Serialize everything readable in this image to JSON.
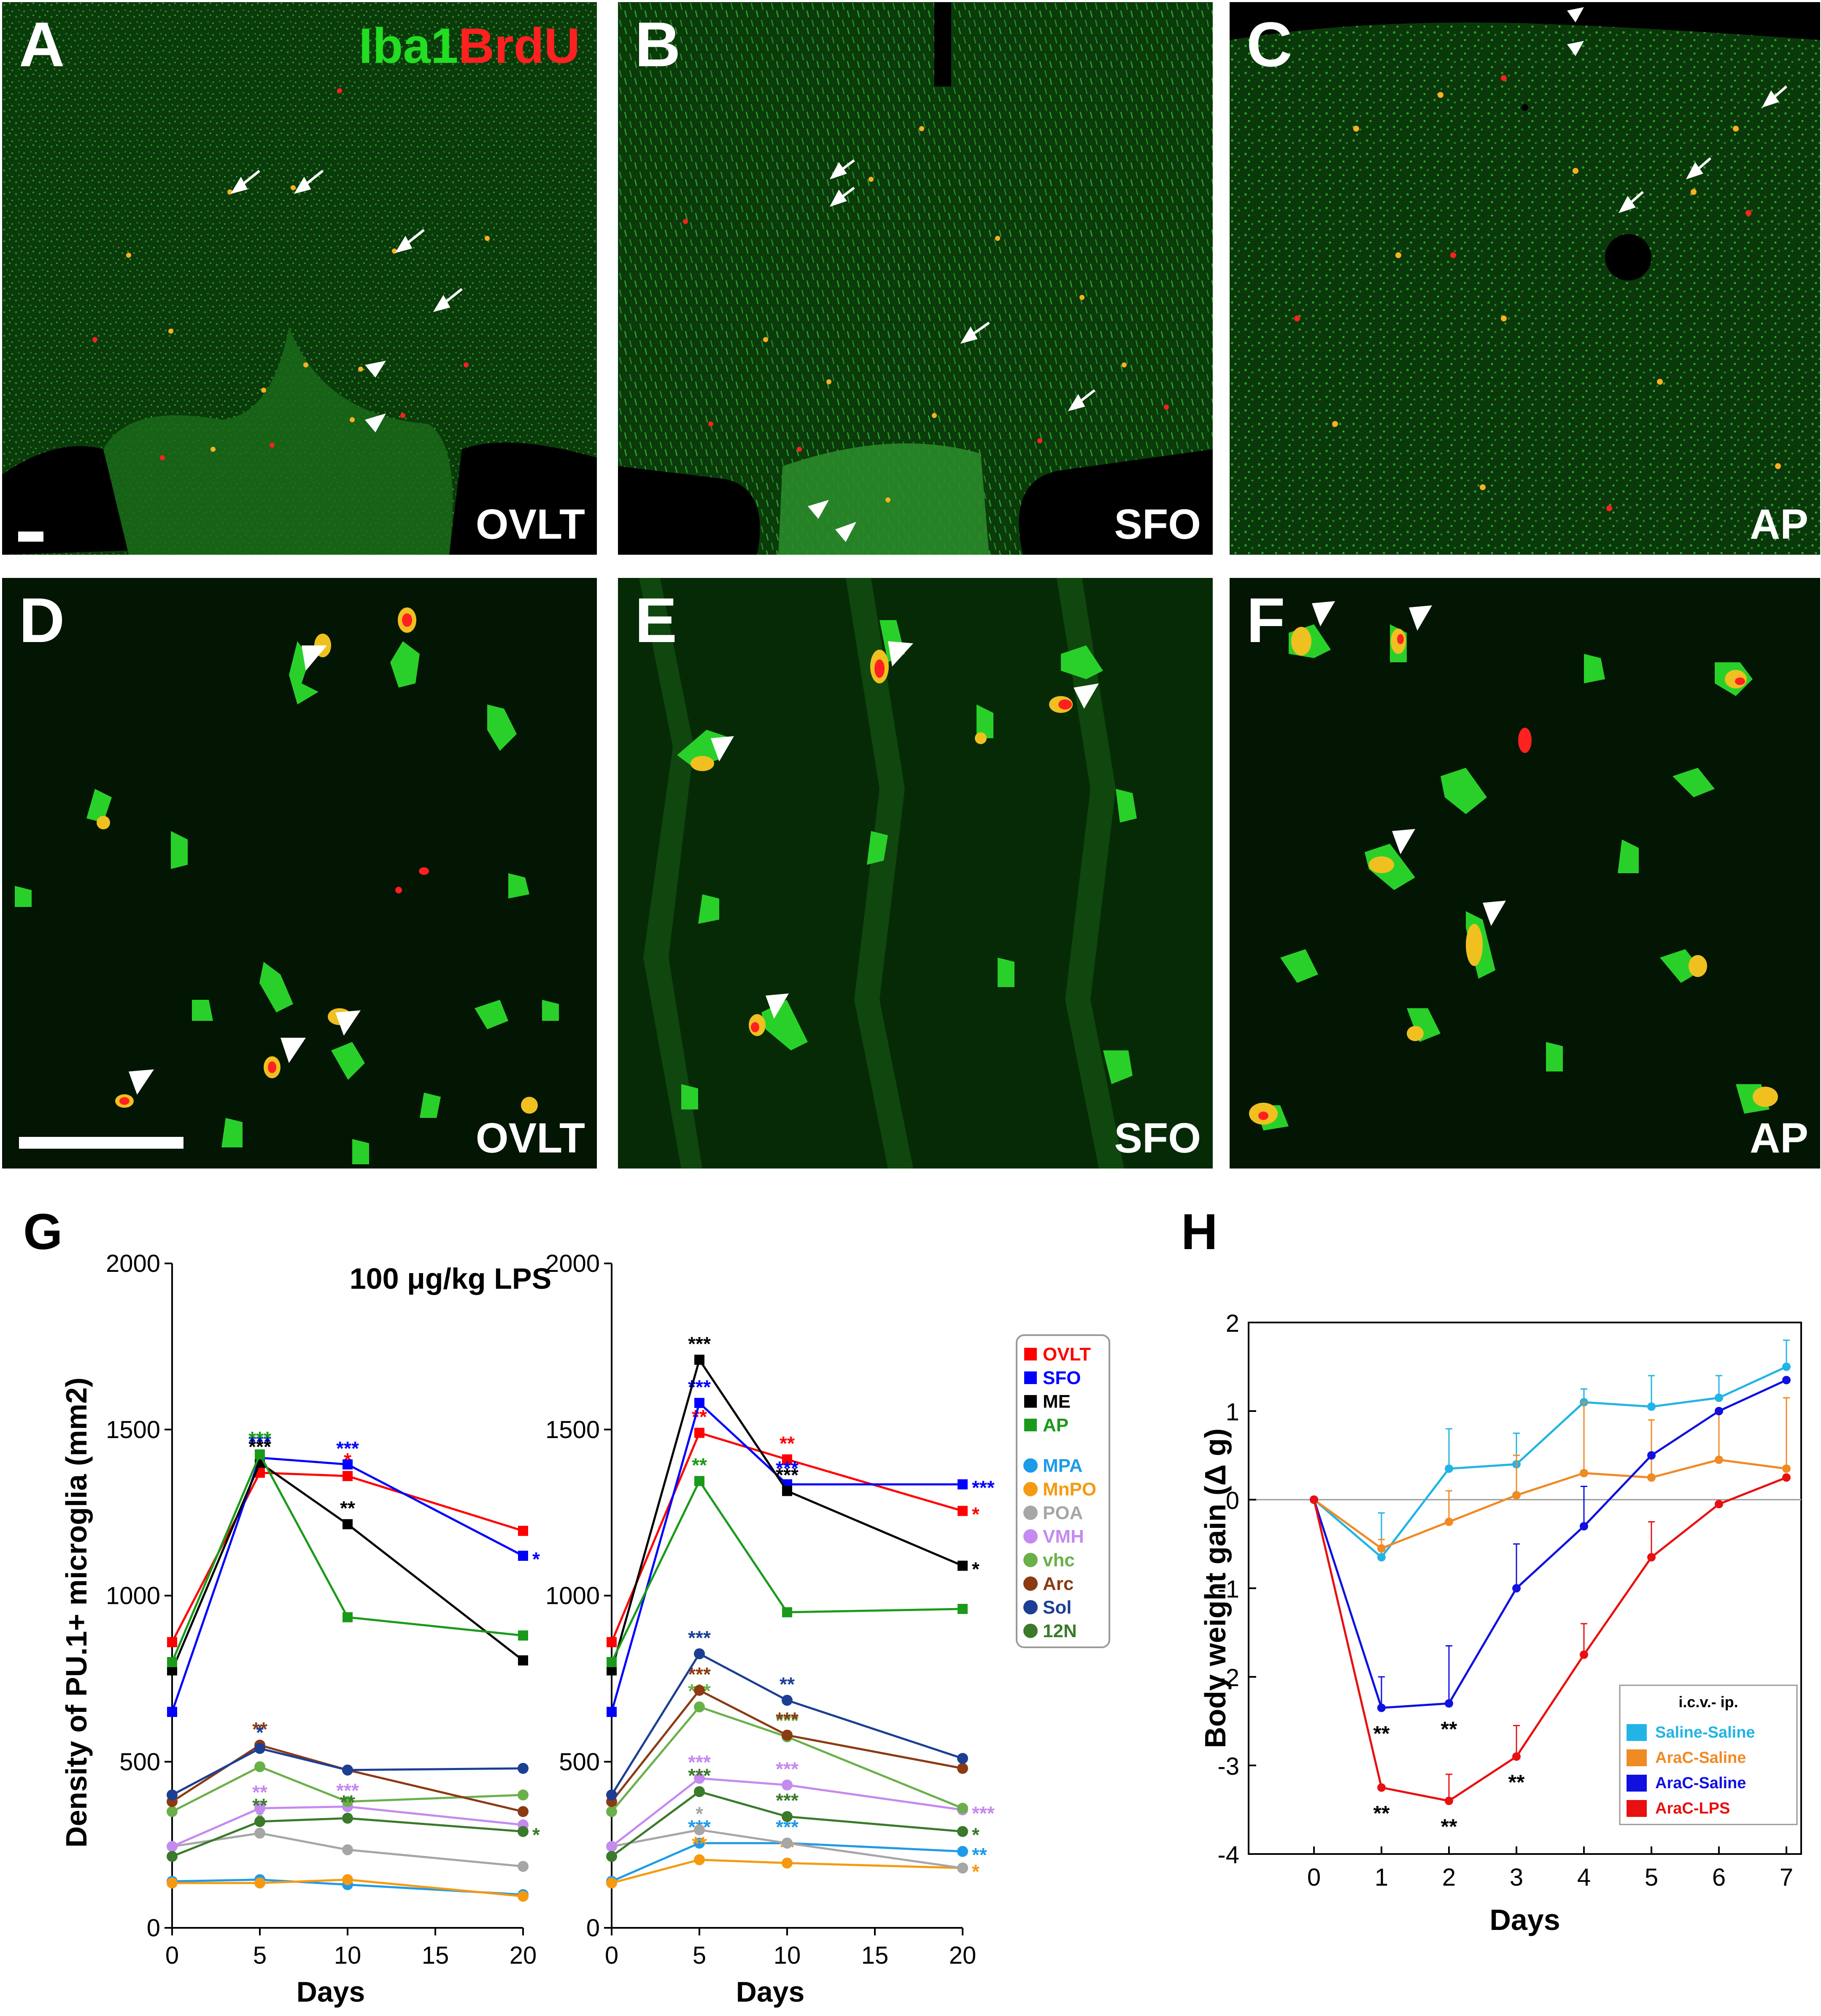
{
  "panels": {
    "A": {
      "label": "A",
      "region": "OVLT",
      "stain_green": "Iba1",
      "stain_red": "BrdU"
    },
    "B": {
      "label": "B",
      "region": "SFO"
    },
    "C": {
      "label": "C",
      "region": "AP"
    },
    "D": {
      "label": "D",
      "region": "OVLT"
    },
    "E": {
      "label": "E",
      "region": "SFO"
    },
    "F": {
      "label": "F",
      "region": "AP"
    },
    "G": {
      "label": "G"
    },
    "H": {
      "label": "H"
    }
  },
  "colors": {
    "microscopy_background": "#062006",
    "green_stain": "#22dd22",
    "red_stain": "#ff2020",
    "double_labelled": "#f0c020"
  },
  "chart_data": [
    {
      "id": "G-left",
      "type": "line",
      "title": "100 μg/kg LPS",
      "xlabel": "Days",
      "ylabel": "Density of PU.1+ microglia (mm2)",
      "x": [
        0,
        5,
        10,
        20
      ],
      "xlim": [
        0,
        20
      ],
      "ylim": [
        0,
        2000
      ],
      "xticks": [
        "0",
        "5",
        "10",
        "15",
        "20"
      ],
      "yticks": [
        "0",
        "500",
        "1000",
        "1500",
        "2000"
      ],
      "series": [
        {
          "name": "OVLT",
          "color": "#ff0000",
          "marker": "square",
          "values": [
            860,
            1370,
            1360,
            1195
          ],
          "stars": [
            "",
            "*",
            "*",
            ""
          ]
        },
        {
          "name": "SFO",
          "color": "#0000ff",
          "marker": "square",
          "values": [
            650,
            1415,
            1395,
            1120
          ],
          "stars": [
            "",
            "***",
            "***",
            "*"
          ]
        },
        {
          "name": "ME",
          "color": "#000000",
          "marker": "square",
          "values": [
            775,
            1400,
            1215,
            805
          ],
          "stars": [
            "",
            "***",
            "**",
            ""
          ]
        },
        {
          "name": "AP",
          "color": "#1a9a1a",
          "marker": "square",
          "values": [
            800,
            1425,
            935,
            880
          ],
          "stars": [
            "",
            "***",
            "",
            ""
          ]
        },
        {
          "name": "MPA",
          "color": "#1e9be8",
          "marker": "circle",
          "values": [
            140,
            145,
            130,
            100
          ],
          "stars": [
            "",
            "",
            "",
            ""
          ]
        },
        {
          "name": "MnPO",
          "color": "#f59a10",
          "marker": "circle",
          "values": [
            135,
            135,
            145,
            95
          ],
          "stars": [
            "",
            "",
            "",
            ""
          ]
        },
        {
          "name": "POA",
          "color": "#a6a6a6",
          "marker": "circle",
          "values": [
            245,
            285,
            235,
            185
          ],
          "stars": [
            "",
            "*",
            "",
            ""
          ]
        },
        {
          "name": "VMH",
          "color": "#c58af0",
          "marker": "circle",
          "values": [
            245,
            360,
            365,
            310
          ],
          "stars": [
            "",
            "**",
            "***",
            ""
          ]
        },
        {
          "name": "vhc",
          "color": "#6ab04a",
          "marker": "circle",
          "values": [
            350,
            485,
            380,
            400
          ],
          "stars": [
            "",
            "*",
            "",
            ""
          ]
        },
        {
          "name": "Arc",
          "color": "#8b3a12",
          "marker": "circle",
          "values": [
            380,
            550,
            475,
            350
          ],
          "stars": [
            "",
            "**",
            "",
            ""
          ]
        },
        {
          "name": "Sol",
          "color": "#1c3f94",
          "marker": "circle",
          "values": [
            400,
            540,
            475,
            480
          ],
          "stars": [
            "",
            "*",
            "",
            ""
          ]
        },
        {
          "name": "12N",
          "color": "#3a7a2a",
          "marker": "circle",
          "values": [
            215,
            320,
            330,
            290
          ],
          "stars": [
            "",
            "**",
            "**",
            "*"
          ]
        }
      ]
    },
    {
      "id": "G-right",
      "type": "line",
      "title": "",
      "xlabel": "Days",
      "ylabel": "",
      "x": [
        0,
        5,
        10,
        20
      ],
      "xlim": [
        0,
        20
      ],
      "ylim": [
        0,
        2000
      ],
      "xticks": [
        "0",
        "5",
        "10",
        "15",
        "20"
      ],
      "yticks": [
        "0",
        "500",
        "1000",
        "1500",
        "2000"
      ],
      "legend": "right",
      "series": [
        {
          "name": "OVLT",
          "color": "#ff0000",
          "marker": "square",
          "values": [
            860,
            1490,
            1410,
            1255
          ],
          "stars": [
            "",
            "**",
            "**",
            "*"
          ]
        },
        {
          "name": "SFO",
          "color": "#0000ff",
          "marker": "square",
          "values": [
            650,
            1580,
            1335,
            1335
          ],
          "stars": [
            "",
            "***",
            "***",
            "***"
          ]
        },
        {
          "name": "ME",
          "color": "#000000",
          "marker": "square",
          "values": [
            775,
            1710,
            1315,
            1090
          ],
          "stars": [
            "",
            "***",
            "***",
            "*"
          ]
        },
        {
          "name": "AP",
          "color": "#1a9a1a",
          "marker": "square",
          "values": [
            800,
            1345,
            950,
            960
          ],
          "stars": [
            "",
            "**",
            "",
            ""
          ]
        },
        {
          "name": "MPA",
          "color": "#1e9be8",
          "marker": "circle",
          "values": [
            140,
            255,
            255,
            230
          ],
          "stars": [
            "",
            "***",
            "***",
            "**"
          ]
        },
        {
          "name": "MnPO",
          "color": "#f59a10",
          "marker": "circle",
          "values": [
            135,
            205,
            195,
            180
          ],
          "stars": [
            "",
            "**",
            "**",
            "*"
          ]
        },
        {
          "name": "POA",
          "color": "#a6a6a6",
          "marker": "circle",
          "values": [
            245,
            295,
            255,
            180
          ],
          "stars": [
            "",
            "*",
            "",
            ""
          ]
        },
        {
          "name": "VMH",
          "color": "#c58af0",
          "marker": "circle",
          "values": [
            245,
            450,
            430,
            355
          ],
          "stars": [
            "",
            "***",
            "***",
            "***"
          ]
        },
        {
          "name": "vhc",
          "color": "#6ab04a",
          "marker": "circle",
          "values": [
            350,
            665,
            575,
            360
          ],
          "stars": [
            "",
            "***",
            "***",
            ""
          ]
        },
        {
          "name": "Arc",
          "color": "#8b3a12",
          "marker": "circle",
          "values": [
            380,
            715,
            580,
            480
          ],
          "stars": [
            "",
            "***",
            "***",
            ""
          ]
        },
        {
          "name": "Sol",
          "color": "#1c3f94",
          "marker": "circle",
          "values": [
            400,
            825,
            685,
            510
          ],
          "stars": [
            "",
            "***",
            "**",
            ""
          ]
        },
        {
          "name": "12N",
          "color": "#3a7a2a",
          "marker": "circle",
          "values": [
            215,
            410,
            335,
            290
          ],
          "stars": [
            "",
            "***",
            "***",
            "*"
          ]
        }
      ]
    },
    {
      "id": "H",
      "type": "line",
      "title": "",
      "xlabel": "Days",
      "ylabel": "Body weight gain (Δ g)",
      "x": [
        0,
        1,
        2,
        3,
        4,
        5,
        6,
        7
      ],
      "xlim": [
        0,
        7
      ],
      "ylim": [
        -4,
        2
      ],
      "xticks": [
        "0",
        "1",
        "2",
        "3",
        "4",
        "5",
        "6",
        "7"
      ],
      "yticks": [
        "-4",
        "-3",
        "-2",
        "-1",
        "0",
        "1",
        "2"
      ],
      "legend": "bottom-right",
      "legend_title": "i.c.v.- ip.",
      "series": [
        {
          "name": "Saline-Saline",
          "color": "#22b4e6",
          "values": [
            0,
            -0.65,
            0.35,
            0.4,
            1.1,
            1.05,
            1.15,
            1.5
          ],
          "err": [
            0,
            0.5,
            0.45,
            0.35,
            0.15,
            0.35,
            0.25,
            0.3
          ],
          "stars": [
            "",
            "",
            "",
            "",
            "",
            "",
            "",
            ""
          ]
        },
        {
          "name": "AraC-Saline",
          "color": "#f08a24",
          "values": [
            0,
            -0.55,
            -0.25,
            0.05,
            0.3,
            0.25,
            0.45,
            0.35
          ],
          "err": [
            0,
            0.1,
            0.35,
            0.45,
            0.8,
            0.65,
            0.55,
            0.8
          ],
          "stars": [
            "",
            "",
            "",
            "",
            "",
            "",
            "",
            ""
          ]
        },
        {
          "name": "AraC-Saline",
          "color": "#1010e0",
          "values": [
            0,
            -2.35,
            -2.3,
            -1.0,
            -0.3,
            0.5,
            1.0,
            1.35
          ],
          "err": [
            0,
            0.35,
            0.65,
            0.5,
            0.45,
            0,
            0,
            0
          ],
          "stars": [
            "",
            "**",
            "**",
            "",
            "",
            "",
            "",
            ""
          ]
        },
        {
          "name": "AraC-LPS",
          "color": "#e81010",
          "values": [
            0,
            -3.25,
            -3.4,
            -2.9,
            -1.75,
            -0.65,
            -0.05,
            0.25
          ],
          "err": [
            0,
            0,
            0.3,
            0.35,
            0.35,
            0.4,
            0,
            0
          ],
          "stars": [
            "",
            "**",
            "**",
            "**",
            "",
            "",
            "",
            ""
          ]
        }
      ]
    }
  ]
}
